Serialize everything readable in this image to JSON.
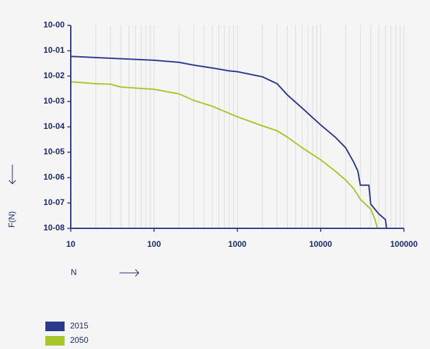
{
  "chart_data": {
    "type": "line",
    "x_label": "N",
    "y_label": "F(N)",
    "xscale": "log",
    "yscale": "log",
    "xlim": [
      10,
      100000
    ],
    "ylim": [
      1e-08,
      1
    ],
    "xticks": [
      10,
      100,
      1000,
      10000,
      100000
    ],
    "xminorticks": [
      20,
      30,
      40,
      50,
      60,
      70,
      80,
      90,
      200,
      300,
      400,
      500,
      600,
      700,
      800,
      900,
      2000,
      3000,
      4000,
      5000,
      6000,
      7000,
      8000,
      9000,
      20000,
      30000,
      40000,
      50000,
      60000,
      70000,
      80000,
      90000
    ],
    "yticks": [
      {
        "value": 1,
        "label": "10-00"
      },
      {
        "value": 0.1,
        "label": "10-01"
      },
      {
        "value": 0.01,
        "label": "10-02"
      },
      {
        "value": 0.001,
        "label": "10-03"
      },
      {
        "value": 0.0001,
        "label": "10-04"
      },
      {
        "value": 1e-05,
        "label": "10-05"
      },
      {
        "value": 1e-06,
        "label": "10-06"
      },
      {
        "value": 1e-07,
        "label": "10-07"
      },
      {
        "value": 1e-08,
        "label": "10-08"
      }
    ],
    "grid": true,
    "legend": "bottom-left",
    "series": [
      {
        "name": "2015",
        "color": "#2b3a8c",
        "x": [
          10,
          100,
          200,
          300,
          500,
          800,
          1000,
          2000,
          3000,
          4000,
          6000,
          10000,
          15000,
          20000,
          25000,
          28000,
          30000,
          38000,
          40000,
          50000,
          60000,
          62000
        ],
        "values": [
          0.06,
          0.042,
          0.035,
          0.027,
          0.021,
          0.016,
          0.015,
          0.0094,
          0.005,
          0.0018,
          0.00055,
          0.00012,
          3.9e-05,
          1.5e-05,
          4e-06,
          1.8e-06,
          5e-07,
          5e-07,
          9e-08,
          3.7e-08,
          2.2e-08,
          1e-08
        ]
      },
      {
        "name": "2050",
        "color": "#a8c62b",
        "x": [
          10,
          20,
          30,
          40,
          100,
          200,
          300,
          500,
          1000,
          2000,
          3000,
          4000,
          6000,
          10000,
          15000,
          20000,
          25000,
          30000,
          40000,
          45000,
          48000
        ],
        "values": [
          0.006,
          0.005,
          0.0048,
          0.0037,
          0.003,
          0.002,
          0.0011,
          0.00065,
          0.00025,
          0.00011,
          7e-05,
          3.9e-05,
          1.5e-05,
          5e-06,
          1.8e-06,
          8e-07,
          3.6e-07,
          1.4e-07,
          5.7e-08,
          2.2e-08,
          1e-08
        ]
      }
    ]
  }
}
